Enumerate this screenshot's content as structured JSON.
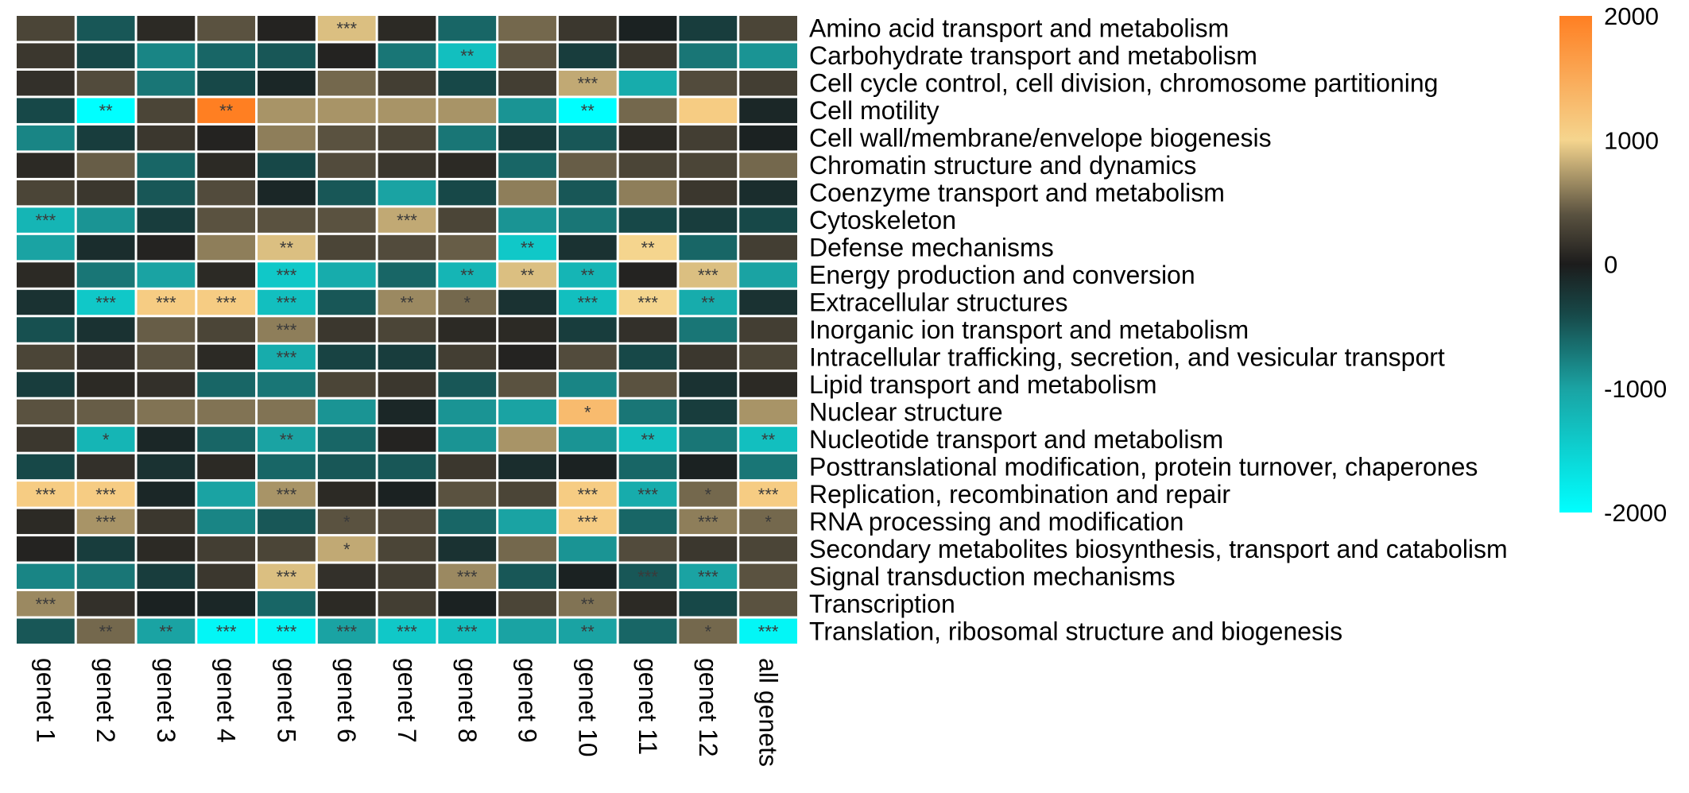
{
  "chart_data": {
    "type": "heatmap",
    "title": "",
    "xlabel": "",
    "ylabel": "",
    "columns": [
      "genet 1",
      "genet 2",
      "genet 3",
      "genet 4",
      "genet 5",
      "genet 6",
      "genet 7",
      "genet 8",
      "genet 9",
      "genet 10",
      "genet 11",
      "genet 12",
      "all genets"
    ],
    "rows": [
      "Amino acid transport and metabolism",
      "Carbohydrate transport and metabolism",
      "Cell cycle control, cell division, chromosome partitioning",
      "Cell motility",
      "Cell wall/membrane/envelope biogenesis",
      "Chromatin structure and dynamics",
      "Coenzyme transport and metabolism",
      "Cytoskeleton",
      "Defense mechanisms",
      "Energy production and conversion",
      "Extracellular structures",
      "Inorganic ion transport and metabolism",
      "Intracellular trafficking, secretion, and vesicular transport",
      "Lipid transport and metabolism",
      "Nuclear structure",
      "Nucleotide transport and metabolism",
      "Posttranslational modification, protein turnover, chaperones",
      "Replication, recombination and repair",
      "RNA processing and modification",
      "Secondary metabolites biosynthesis, transport and catabolism",
      "Signal transduction mechanisms",
      "Transcription",
      "Translation, ribosomal structure and biogenesis"
    ],
    "values": [
      [
        300,
        -500,
        100,
        400,
        50,
        900,
        100,
        -600,
        500,
        200,
        -50,
        -300,
        300
      ],
      [
        200,
        -400,
        -800,
        -600,
        -500,
        50,
        -700,
        -1300,
        400,
        -300,
        200,
        -700,
        -900
      ],
      [
        150,
        350,
        -700,
        -400,
        -100,
        500,
        250,
        -400,
        250,
        800,
        -1100,
        350,
        250
      ],
      [
        -400,
        -2000,
        300,
        2000,
        700,
        700,
        700,
        700,
        -900,
        -2000,
        500,
        1100,
        -100
      ],
      [
        -800,
        -300,
        200,
        50,
        600,
        400,
        300,
        -700,
        -300,
        -500,
        100,
        250,
        -50
      ],
      [
        100,
        450,
        -600,
        100,
        -400,
        350,
        200,
        100,
        -600,
        450,
        300,
        300,
        500
      ],
      [
        300,
        200,
        -500,
        350,
        -100,
        -500,
        -1000,
        -400,
        600,
        -500,
        600,
        200,
        -150
      ],
      [
        -1200,
        -900,
        -300,
        400,
        400,
        400,
        800,
        300,
        -900,
        -700,
        -400,
        -300,
        -400
      ],
      [
        -1000,
        -150,
        50,
        600,
        900,
        300,
        350,
        450,
        -1400,
        -200,
        1000,
        -600,
        250
      ],
      [
        100,
        -700,
        -1000,
        100,
        -1400,
        -1100,
        -600,
        -1200,
        900,
        -1200,
        50,
        900,
        -1000
      ],
      [
        -200,
        -1400,
        1100,
        1100,
        -1300,
        -500,
        650,
        500,
        -200,
        -1300,
        1000,
        -1100,
        -200
      ],
      [
        -450,
        -200,
        450,
        300,
        600,
        200,
        300,
        100,
        100,
        -300,
        150,
        -700,
        250
      ],
      [
        300,
        150,
        400,
        100,
        -1100,
        -350,
        -300,
        250,
        50,
        350,
        -400,
        200,
        300
      ],
      [
        -300,
        100,
        150,
        -600,
        -700,
        300,
        200,
        -500,
        400,
        -800,
        400,
        -200,
        100
      ],
      [
        400,
        450,
        550,
        550,
        550,
        -900,
        -100,
        -900,
        -1000,
        1300,
        -700,
        -300,
        700
      ],
      [
        200,
        -1200,
        -100,
        -600,
        -1000,
        -600,
        50,
        -900,
        700,
        -900,
        -1300,
        -700,
        -1300
      ],
      [
        -400,
        150,
        -200,
        100,
        -600,
        -500,
        -500,
        200,
        -150,
        -50,
        -600,
        -50,
        -700
      ],
      [
        1100,
        1100,
        -100,
        -1000,
        700,
        100,
        -50,
        400,
        300,
        1100,
        -1100,
        500,
        1100
      ],
      [
        100,
        700,
        200,
        -800,
        -500,
        400,
        350,
        -600,
        -1000,
        1100,
        -600,
        600,
        500
      ],
      [
        50,
        -300,
        100,
        250,
        300,
        800,
        300,
        -200,
        500,
        -900,
        350,
        200,
        300
      ],
      [
        -800,
        -700,
        -300,
        200,
        900,
        150,
        250,
        650,
        -500,
        -50,
        -500,
        -1000,
        400
      ],
      [
        650,
        150,
        -50,
        -100,
        -600,
        100,
        250,
        -50,
        300,
        550,
        100,
        -400,
        400
      ],
      [
        -500,
        500,
        -1000,
        -1900,
        -1900,
        -1000,
        -1400,
        -1300,
        -1000,
        -1000,
        -600,
        500,
        -1900
      ]
    ],
    "significance": [
      [
        "",
        "",
        "",
        "",
        "",
        "***",
        "",
        "",
        "",
        "",
        "",
        "",
        ""
      ],
      [
        "",
        "",
        "",
        "",
        "",
        "",
        "",
        "**",
        "",
        "",
        "",
        "",
        ""
      ],
      [
        "",
        "",
        "",
        "",
        "",
        "",
        "",
        "",
        "",
        "***",
        "",
        "",
        ""
      ],
      [
        "",
        "**",
        "",
        "**",
        "",
        "",
        "",
        "",
        "",
        "**",
        "",
        "",
        ""
      ],
      [
        "",
        "",
        "",
        "",
        "",
        "",
        "",
        "",
        "",
        "",
        "",
        "",
        ""
      ],
      [
        "",
        "",
        "",
        "",
        "",
        "",
        "",
        "",
        "",
        "",
        "",
        "",
        ""
      ],
      [
        "",
        "",
        "",
        "",
        "",
        "",
        "",
        "",
        "",
        "",
        "",
        "",
        ""
      ],
      [
        "***",
        "",
        "",
        "",
        "",
        "",
        "***",
        "",
        "",
        "",
        "",
        "",
        ""
      ],
      [
        "",
        "",
        "",
        "",
        "**",
        "",
        "",
        "",
        "**",
        "",
        "**",
        "",
        ""
      ],
      [
        "",
        "",
        "",
        "",
        "***",
        "",
        "",
        "**",
        "**",
        "**",
        "",
        "***",
        ""
      ],
      [
        "",
        "***",
        "***",
        "***",
        "***",
        "",
        "**",
        "*",
        "",
        "***",
        "***",
        "**",
        ""
      ],
      [
        "",
        "",
        "",
        "",
        "***",
        "",
        "",
        "",
        "",
        "",
        "",
        "",
        ""
      ],
      [
        "",
        "",
        "",
        "",
        "***",
        "",
        "",
        "",
        "",
        "",
        "",
        "",
        ""
      ],
      [
        "",
        "",
        "",
        "",
        "",
        "",
        "",
        "",
        "",
        "",
        "",
        "",
        ""
      ],
      [
        "",
        "",
        "",
        "",
        "",
        "",
        "",
        "",
        "",
        "*",
        "",
        "",
        ""
      ],
      [
        "",
        "*",
        "",
        "",
        "**",
        "",
        "",
        "",
        "",
        "",
        "**",
        "",
        "**"
      ],
      [
        "",
        "",
        "",
        "",
        "",
        "",
        "",
        "",
        "",
        "",
        "",
        "",
        ""
      ],
      [
        "***",
        "***",
        "",
        "",
        "***",
        "",
        "",
        "",
        "",
        "***",
        "***",
        "*",
        "***"
      ],
      [
        "",
        "***",
        "",
        "",
        "",
        "*",
        "",
        "",
        "",
        "***",
        "",
        "***",
        "*"
      ],
      [
        "",
        "",
        "",
        "",
        "",
        "*",
        "",
        "",
        "",
        "",
        "",
        "",
        ""
      ],
      [
        "",
        "",
        "",
        "",
        "***",
        "",
        "",
        "***",
        "",
        "",
        "***",
        "***",
        ""
      ],
      [
        "***",
        "",
        "",
        "",
        "",
        "",
        "",
        "",
        "",
        "**",
        "",
        "",
        ""
      ],
      [
        "",
        "**",
        "**",
        "***",
        "***",
        "***",
        "***",
        "***",
        "",
        "**",
        "",
        "*",
        "***"
      ]
    ],
    "color_scale": {
      "min": -2000,
      "max": 2000,
      "ticks": [
        2000,
        1000,
        0,
        -1000,
        -2000
      ],
      "tick_labels": [
        "2000",
        "1000",
        "0",
        "-1000",
        "-2000"
      ],
      "stops": [
        {
          "value": -2000,
          "color": "#00ffff"
        },
        {
          "value": -1000,
          "color": "#1aa3a3"
        },
        {
          "value": -400,
          "color": "#174848"
        },
        {
          "value": 0,
          "color": "#1c1c1c"
        },
        {
          "value": 400,
          "color": "#5a5240"
        },
        {
          "value": 1000,
          "color": "#f5d58e"
        },
        {
          "value": 2000,
          "color": "#ff7f22"
        }
      ]
    },
    "legend": "right"
  }
}
